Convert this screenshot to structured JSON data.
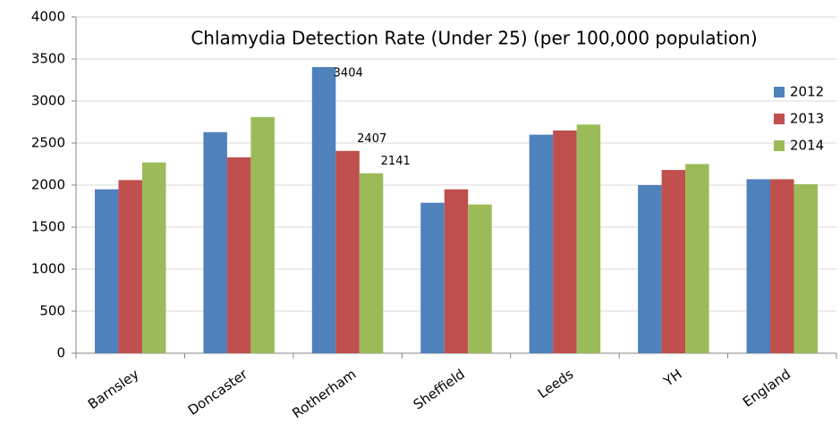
{
  "chart_data": {
    "type": "bar",
    "title": "Chlamydia Detection Rate (Under 25) (per 100,000 population)",
    "categories": [
      "Barnsley",
      "Doncaster",
      "Rotherham",
      "Sheffield",
      "Leeds",
      "YH",
      "England"
    ],
    "series": [
      {
        "name": "2012",
        "color": "#4f81bd",
        "values": [
          1950,
          2630,
          3404,
          1790,
          2600,
          2000,
          2070
        ],
        "value_labels": [
          null,
          null,
          "3404",
          null,
          null,
          null,
          null
        ]
      },
      {
        "name": "2013",
        "color": "#c0504d",
        "values": [
          2060,
          2330,
          2407,
          1950,
          2650,
          2180,
          2070
        ],
        "value_labels": [
          null,
          null,
          "2407",
          null,
          null,
          null,
          null
        ]
      },
      {
        "name": "2014",
        "color": "#9bbb59",
        "values": [
          2270,
          2810,
          2141,
          1770,
          2720,
          2250,
          2010
        ],
        "value_labels": [
          null,
          null,
          "2141",
          null,
          null,
          null,
          null
        ]
      }
    ],
    "ylim": [
      0,
      4000
    ],
    "yticks": [
      0,
      500,
      1000,
      1500,
      2000,
      2500,
      3000,
      3500,
      4000
    ],
    "grid": true,
    "legend": "right"
  }
}
